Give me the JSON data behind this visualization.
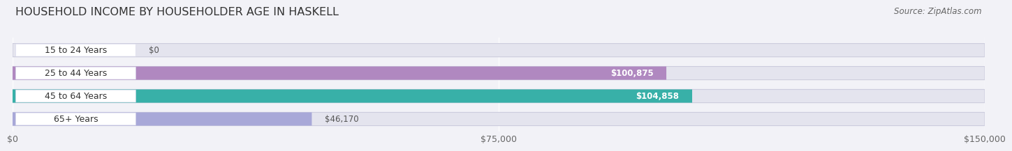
{
  "title": "HOUSEHOLD INCOME BY HOUSEHOLDER AGE IN HASKELL",
  "source": "Source: ZipAtlas.com",
  "categories": [
    "15 to 24 Years",
    "25 to 44 Years",
    "45 to 64 Years",
    "65+ Years"
  ],
  "values": [
    0,
    100875,
    104858,
    46170
  ],
  "bar_colors": [
    "#b8d0e8",
    "#b088c0",
    "#38b0a8",
    "#a8a8d8"
  ],
  "label_colors": [
    "#444444",
    "#ffffff",
    "#ffffff",
    "#444444"
  ],
  "label_texts": [
    "$0",
    "$100,875",
    "$104,858",
    "$46,170"
  ],
  "xlim": [
    0,
    150000
  ],
  "xticks": [
    0,
    75000,
    150000
  ],
  "xticklabels": [
    "$0",
    "$75,000",
    "$150,000"
  ],
  "background_color": "#f2f2f7",
  "bar_bg_color": "#e4e4ee",
  "white_label_bg": "#ffffff",
  "title_fontsize": 11.5,
  "source_fontsize": 8.5,
  "tick_fontsize": 9,
  "label_fontsize": 8.5,
  "category_fontsize": 9
}
